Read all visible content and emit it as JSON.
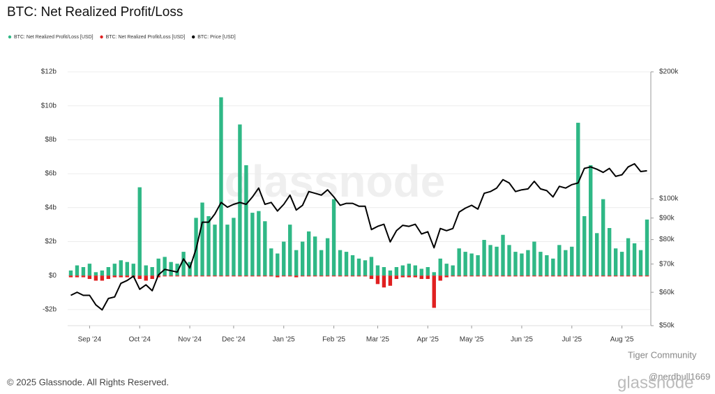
{
  "chart_data": {
    "type": "bar",
    "title": "BTC: Net Realized Profit/Loss",
    "footer": "© 2025 Glassnode. All Rights Reserved.",
    "watermark": "glassnode",
    "overlay_texts": [
      "Tiger Community",
      "@nerdbull1669",
      "glassnode"
    ],
    "legend_position": "top-left",
    "grid": true,
    "categories": [
      null,
      null,
      null,
      "Sep '24",
      null,
      null,
      null,
      null,
      null,
      null,
      null,
      "Oct '24",
      null,
      null,
      null,
      null,
      null,
      null,
      null,
      "Nov '24",
      null,
      null,
      null,
      null,
      null,
      null,
      "Dec '24",
      null,
      null,
      null,
      null,
      null,
      null,
      null,
      "Jan '25",
      null,
      null,
      null,
      null,
      null,
      null,
      null,
      "Feb '25",
      null,
      null,
      null,
      null,
      null,
      null,
      "Mar '25",
      null,
      null,
      null,
      null,
      null,
      null,
      null,
      "Apr '25",
      null,
      null,
      null,
      null,
      null,
      null,
      "May '25",
      null,
      null,
      null,
      null,
      null,
      null,
      null,
      "Jun '25",
      null,
      null,
      null,
      null,
      null,
      null,
      null,
      "Jul '25",
      null,
      null,
      null,
      null,
      null,
      null,
      null,
      "Aug '25",
      null,
      null,
      null,
      null
    ],
    "ylim": [
      -2.95,
      12
    ],
    "yticks": [
      {
        "value": -2,
        "label": "-$2b"
      },
      {
        "value": 0,
        "label": "$0"
      },
      {
        "value": 2,
        "label": "$2b"
      },
      {
        "value": 4,
        "label": "$4b"
      },
      {
        "value": 6,
        "label": "$6b"
      },
      {
        "value": 8,
        "label": "$8b"
      },
      {
        "value": 10,
        "label": "$10b"
      },
      {
        "value": 12,
        "label": "$12b"
      }
    ],
    "y2lim": [
      50,
      200
    ],
    "y2scale": "log",
    "y2ticks": [
      {
        "value": 50,
        "label": "$50k"
      },
      {
        "value": 60,
        "label": "$60k"
      },
      {
        "value": 70,
        "label": "$70k"
      },
      {
        "value": 80,
        "label": "$80k"
      },
      {
        "value": 90,
        "label": "$90k"
      },
      {
        "value": 100,
        "label": "$100k"
      },
      {
        "value": 200,
        "label": "$200k"
      }
    ],
    "series": [
      {
        "name": "BTC: Net Realized Profit/Loss [USD]",
        "color": "#2fb886",
        "kind": "bar",
        "values": [
          0.3,
          0.6,
          0.5,
          0.7,
          0.2,
          0.3,
          0.5,
          0.7,
          0.9,
          0.8,
          0.7,
          5.2,
          0.6,
          0.5,
          1.0,
          1.1,
          0.8,
          0.7,
          1.4,
          0.8,
          3.4,
          4.3,
          3.5,
          3.0,
          10.5,
          3.0,
          3.4,
          8.9,
          6.5,
          3.7,
          3.8,
          3.2,
          1.6,
          1.3,
          2.0,
          3.0,
          1.5,
          2.0,
          2.6,
          2.3,
          1.5,
          2.2,
          4.5,
          1.5,
          1.4,
          1.2,
          1.0,
          0.9,
          1.1,
          0.6,
          0.5,
          0.3,
          0.5,
          0.6,
          0.7,
          0.6,
          0.4,
          0.5,
          0.2,
          1.0,
          0.7,
          0.6,
          1.6,
          1.4,
          1.3,
          1.2,
          2.1,
          1.8,
          1.7,
          2.4,
          1.8,
          1.4,
          1.3,
          1.5,
          2.0,
          1.4,
          1.2,
          1.0,
          1.8,
          1.5,
          1.7,
          9.0,
          3.5,
          6.5,
          2.5,
          4.5,
          2.8,
          1.6,
          1.4,
          2.2,
          1.9,
          1.5,
          3.3
        ]
      },
      {
        "name": "BTC: Net Realized Profit/Loss [USD]",
        "color": "#e02020",
        "kind": "bar",
        "values": [
          -0.1,
          -0.1,
          -0.1,
          -0.2,
          -0.3,
          -0.3,
          -0.2,
          -0.1,
          -0.1,
          -0.1,
          -0.1,
          -0.2,
          -0.3,
          -0.2,
          -0.1,
          -0.05,
          -0.05,
          -0.05,
          -0.05,
          -0.05,
          -0.05,
          -0.05,
          -0.05,
          -0.05,
          -0.05,
          -0.05,
          -0.05,
          -0.05,
          -0.05,
          -0.05,
          -0.05,
          -0.05,
          -0.05,
          -0.1,
          -0.05,
          -0.05,
          -0.1,
          -0.05,
          -0.05,
          -0.05,
          -0.05,
          -0.05,
          -0.05,
          -0.05,
          -0.05,
          -0.05,
          -0.05,
          -0.05,
          -0.2,
          -0.5,
          -0.7,
          -0.6,
          -0.2,
          -0.1,
          -0.1,
          -0.1,
          -0.2,
          -0.2,
          -1.9,
          -0.3,
          -0.1,
          -0.05,
          -0.05,
          -0.05,
          -0.05,
          -0.05,
          -0.05,
          -0.05,
          -0.05,
          -0.05,
          -0.05,
          -0.05,
          -0.05,
          -0.05,
          -0.05,
          -0.05,
          -0.05,
          -0.05,
          -0.05,
          -0.05,
          -0.05,
          -0.05,
          -0.05,
          -0.05,
          -0.05,
          -0.05,
          -0.05,
          -0.05,
          -0.05,
          -0.05,
          -0.05,
          -0.05,
          -0.05
        ]
      },
      {
        "name": "BTC: Price [USD]",
        "color": "#000000",
        "kind": "line",
        "axis": "y2",
        "values": [
          59,
          60,
          59,
          59,
          56,
          54.5,
          58,
          58.5,
          63,
          64,
          65.5,
          61,
          62.5,
          60.5,
          66,
          68,
          67.5,
          67,
          72,
          68.5,
          76,
          88,
          88,
          92,
          98,
          95.5,
          97,
          98,
          97,
          101,
          106,
          97,
          98,
          93.5,
          97,
          102,
          94,
          96.5,
          104,
          103,
          102,
          105,
          101,
          96.5,
          97.5,
          97.5,
          96,
          96,
          84.5,
          86,
          87,
          79,
          84,
          86.5,
          86,
          87,
          82.5,
          83.5,
          76.5,
          85,
          84,
          85,
          93,
          95,
          96.5,
          94.5,
          103,
          104,
          106,
          111,
          109,
          104,
          105,
          105.5,
          110,
          105.5,
          104.5,
          101,
          107,
          106,
          108,
          109,
          118,
          119,
          117.5,
          115.5,
          118,
          113,
          114,
          119,
          121,
          116,
          116.5
        ]
      }
    ]
  }
}
